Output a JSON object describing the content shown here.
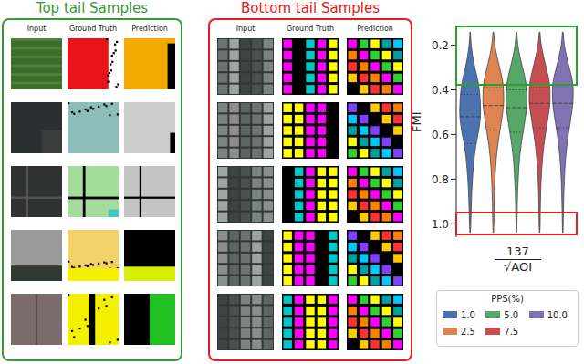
{
  "panels": [
    {
      "title": "Top tail Samples",
      "columns": [
        "Input",
        "Ground Truth",
        "Prediction"
      ],
      "rows": 5
    },
    {
      "title": "Bottom tail Samples",
      "columns": [
        "Input",
        "Ground Truth",
        "Prediction"
      ],
      "rows": 5
    }
  ],
  "chart_data": {
    "type": "violin",
    "ylabel": "FMI",
    "xlabel": {
      "numerator": "137",
      "denominator": "√AOI"
    },
    "ylim": [
      0.12,
      1.06
    ],
    "yticks": [
      0.2,
      0.4,
      0.6,
      0.8,
      {
        "value": 1,
        "label": "1.0"
      }
    ],
    "legend": "bottom",
    "legend_title": "PPS(%)",
    "y": [
      0.14,
      0.2,
      0.25,
      0.3,
      0.35,
      0.4,
      0.45,
      0.5,
      0.55,
      0.6,
      0.65,
      0.7,
      0.75,
      0.8,
      0.85,
      0.9,
      0.95,
      1.0,
      1.04
    ],
    "series": [
      {
        "name": "1.0",
        "color": "#4c72b0",
        "density": [
          0.02,
          0.1,
          0.25,
          0.45,
          0.7,
          0.88,
          0.97,
          1.0,
          0.92,
          0.75,
          0.55,
          0.4,
          0.3,
          0.22,
          0.16,
          0.12,
          0.09,
          0.06,
          0.02
        ],
        "quartiles": [
          0.42,
          0.52,
          0.64
        ]
      },
      {
        "name": "2.5",
        "color": "#dd8452",
        "density": [
          0.03,
          0.15,
          0.35,
          0.6,
          0.85,
          0.98,
          1.0,
          0.9,
          0.75,
          0.58,
          0.42,
          0.3,
          0.22,
          0.16,
          0.12,
          0.09,
          0.07,
          0.05,
          0.02
        ],
        "quartiles": [
          0.39,
          0.47,
          0.58
        ]
      },
      {
        "name": "5.0",
        "color": "#55a868",
        "density": [
          0.03,
          0.14,
          0.33,
          0.58,
          0.83,
          0.97,
          1.0,
          0.92,
          0.77,
          0.6,
          0.44,
          0.31,
          0.23,
          0.17,
          0.12,
          0.09,
          0.07,
          0.05,
          0.02
        ],
        "quartiles": [
          0.4,
          0.48,
          0.59
        ]
      },
      {
        "name": "7.5",
        "color": "#c44e52",
        "density": [
          0.03,
          0.16,
          0.37,
          0.62,
          0.87,
          0.99,
          1.0,
          0.88,
          0.72,
          0.55,
          0.4,
          0.29,
          0.21,
          0.15,
          0.11,
          0.08,
          0.06,
          0.05,
          0.02
        ],
        "quartiles": [
          0.39,
          0.46,
          0.57
        ]
      },
      {
        "name": "10.0",
        "color": "#8172b3",
        "density": [
          0.03,
          0.15,
          0.36,
          0.62,
          0.88,
          1.0,
          0.98,
          0.86,
          0.7,
          0.53,
          0.39,
          0.28,
          0.2,
          0.15,
          0.11,
          0.08,
          0.06,
          0.04,
          0.02
        ],
        "quartiles": [
          0.38,
          0.46,
          0.57
        ]
      }
    ]
  }
}
